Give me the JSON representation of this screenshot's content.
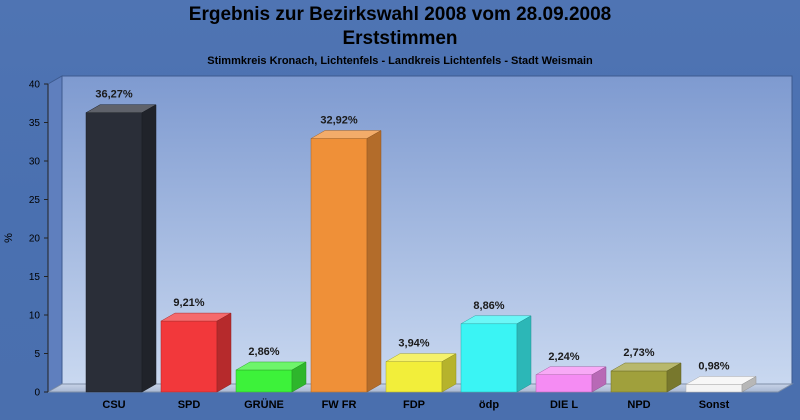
{
  "chart_data": {
    "type": "bar",
    "title": "Ergebnis zur Bezirkswahl 2008 vom 28.09.2008",
    "title2": "Erststimmen",
    "subtitle": "Stimmkreis Kronach, Lichtenfels - Landkreis Lichtenfels - Stadt Weismain",
    "ylabel": "%",
    "xlabel": "",
    "ylim": [
      0,
      40
    ],
    "yticks": [
      0,
      5,
      10,
      15,
      20,
      25,
      30,
      35,
      40
    ],
    "grid": false,
    "categories": [
      "CSU",
      "SPD",
      "GRÜNE",
      "FW FR",
      "FDP",
      "ödp",
      "DIE L",
      "NPD",
      "Sonst"
    ],
    "values": [
      36.27,
      9.21,
      2.86,
      32.92,
      3.94,
      8.86,
      2.24,
      2.73,
      0.98
    ],
    "value_labels": [
      "36,27%",
      "9,21%",
      "2,86%",
      "32,92%",
      "3,94%",
      "8,86%",
      "2,24%",
      "2,73%",
      "0,98%"
    ],
    "colors": [
      "#2a2e38",
      "#f2383b",
      "#3df23a",
      "#ef9038",
      "#f2ee3a",
      "#3af4f4",
      "#f58cf3",
      "#a0a03c",
      "#f4f4f4"
    ]
  }
}
